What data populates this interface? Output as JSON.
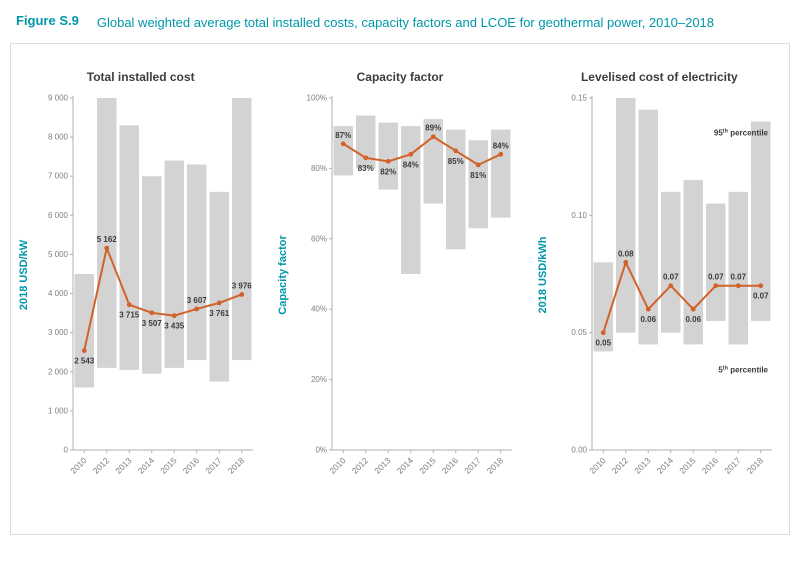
{
  "figure": {
    "label": "Figure S.9",
    "title": "Global weighted average total installed costs, capacity factors and LCOE for geothermal power, 2010–2018"
  },
  "colors": {
    "accent_teal": "#0097A9",
    "line_orange": "#D2622A",
    "band_gray": "#D3D3D3",
    "axis_gray": "#B0B0B0",
    "tick_text": "#7F7F7F",
    "label_dark": "#3B3B3B"
  },
  "chart_data": [
    {
      "type": "line",
      "title": "Total installed cost",
      "ylabel": "2018 USD/kW",
      "ylim": [
        0,
        9000
      ],
      "yticks": [
        0,
        1000,
        2000,
        3000,
        4000,
        5000,
        6000,
        7000,
        8000,
        9000
      ],
      "ytick_labels": [
        "0",
        "1 000",
        "2 000",
        "3 000",
        "4 000",
        "5 000",
        "6 000",
        "7 000",
        "8 000",
        "9 000"
      ],
      "categories": [
        "2010",
        "2012",
        "2013",
        "2014",
        "2015",
        "2016",
        "2017",
        "2018"
      ],
      "values": [
        2543,
        5162,
        3715,
        3507,
        3435,
        3607,
        3761,
        3976
      ],
      "value_labels": [
        "2 543",
        "5 162",
        "3 715",
        "3 507",
        "3 435",
        "3 607",
        "3 761",
        "3 976"
      ],
      "label_pos": [
        "below",
        "above",
        "below",
        "below",
        "below",
        "above",
        "below",
        "above"
      ],
      "band_low": [
        1600,
        2100,
        2050,
        1950,
        2100,
        2300,
        1750,
        2300
      ],
      "band_high": [
        4500,
        9000,
        8300,
        7000,
        7400,
        7300,
        6600,
        9000
      ],
      "annotations": []
    },
    {
      "type": "line",
      "title": "Capacity factor",
      "ylabel": "Capacity factor",
      "ylim": [
        0,
        100
      ],
      "yticks": [
        0,
        20,
        40,
        60,
        80,
        100
      ],
      "ytick_labels": [
        "0%",
        "20%",
        "40%",
        "60%",
        "80%",
        "100%"
      ],
      "categories": [
        "2010",
        "2012",
        "2013",
        "2014",
        "2015",
        "2016",
        "2017",
        "2018"
      ],
      "values": [
        87,
        83,
        82,
        84,
        89,
        85,
        81,
        84
      ],
      "value_labels": [
        "87%",
        "83%",
        "82%",
        "84%",
        "89%",
        "85%",
        "81%",
        "84%"
      ],
      "label_pos": [
        "above",
        "below",
        "below",
        "below",
        "above",
        "below",
        "below",
        "above"
      ],
      "band_low": [
        78,
        80,
        74,
        50,
        70,
        57,
        63,
        66
      ],
      "band_high": [
        92,
        95,
        93,
        92,
        94,
        91,
        88,
        91
      ],
      "annotations": []
    },
    {
      "type": "line",
      "title": "Levelised cost of electricity",
      "ylabel": "2018 USD/kWh",
      "ylim": [
        0,
        0.15
      ],
      "yticks": [
        0,
        0.05,
        0.1,
        0.15
      ],
      "ytick_labels": [
        "0.00",
        "0.05",
        "0.10",
        "0.15"
      ],
      "categories": [
        "2010",
        "2012",
        "2013",
        "2014",
        "2015",
        "2016",
        "2017",
        "2018"
      ],
      "values": [
        0.05,
        0.08,
        0.06,
        0.07,
        0.06,
        0.07,
        0.07,
        0.07
      ],
      "value_labels": [
        "0.05",
        "0.08",
        "0.06",
        "0.07",
        "0.06",
        "0.07",
        "0.07",
        "0.07"
      ],
      "label_pos": [
        "below",
        "above",
        "below",
        "above",
        "below",
        "above",
        "above",
        "below"
      ],
      "band_low": [
        0.042,
        0.05,
        0.045,
        0.05,
        0.045,
        0.055,
        0.045,
        0.055
      ],
      "band_high": [
        0.08,
        0.15,
        0.145,
        0.11,
        0.115,
        0.105,
        0.11,
        0.14
      ],
      "annotations": [
        {
          "base": "95",
          "sup": "th",
          "rest": " percentile",
          "v": 0.134
        },
        {
          "base": "5",
          "sup": "th",
          "rest": " percentile",
          "v": 0.033
        }
      ]
    }
  ]
}
